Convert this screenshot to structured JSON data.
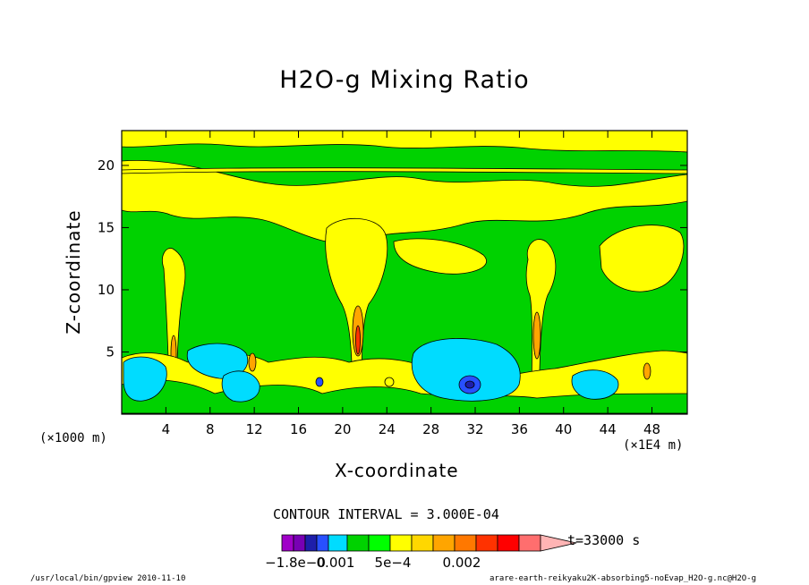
{
  "chart_data": {
    "type": "heatmap",
    "title": "H2O-g Mixing Ratio",
    "xlabel": "X-coordinate",
    "ylabel": "Z-coordinate",
    "x_ticks": [
      "4",
      "8",
      "12",
      "16",
      "20",
      "24",
      "28",
      "32",
      "36",
      "40",
      "44",
      "48"
    ],
    "x_tick_values": [
      4,
      8,
      12,
      16,
      20,
      24,
      28,
      32,
      36,
      40,
      44,
      48
    ],
    "y_ticks": [
      "5",
      "10",
      "15",
      "20"
    ],
    "y_tick_values": [
      5,
      10,
      15,
      20
    ],
    "xlim": [
      0,
      51.2
    ],
    "ylim": [
      0,
      22.8
    ],
    "x_unit_left": "(×1000 m)",
    "x_unit_right": "(×1E4 m)",
    "contour_interval_text": "CONTOUR INTERVAL = 3.000E-04",
    "time_label": "t=33000 s",
    "colorbar_labels": [
      "−1.8e−0",
      "0.001",
      "5e−4",
      "0.002"
    ],
    "colorbar_colors": [
      "#a000c8",
      "#7800b4",
      "#1e1eaa",
      "#2850ff",
      "#00dcff",
      "#00d200",
      "#00ff00",
      "#ffff00",
      "#ffd700",
      "#ffa500",
      "#ff7800",
      "#ff3200",
      "#ff0000",
      "#ff6e6e",
      "#ffb4b4"
    ],
    "field_colors": {
      "green": "#00d200",
      "yellow": "#ffff00",
      "cyan": "#00dcff",
      "blue": "#2850ff",
      "orange": "#ffa500",
      "red": "#ff3200",
      "gold": "#ffd700"
    },
    "grid": false
  },
  "footer": {
    "left": "/usr/local/bin/gpview  2010-11-10",
    "right": "arare-earth-reikyaku2K-absorbing5-noEvap_H2O-g.nc@H2O-g"
  }
}
